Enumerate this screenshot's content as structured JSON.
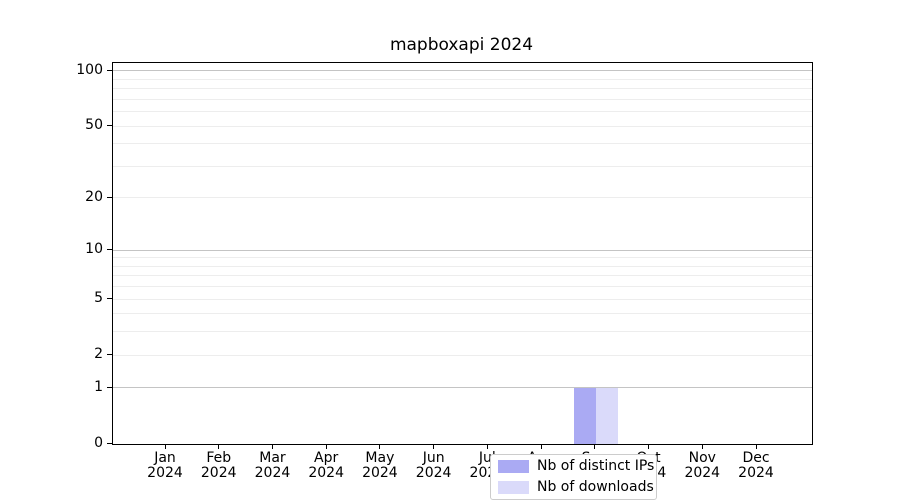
{
  "chart_data": {
    "type": "bar",
    "title": "mapboxapi 2024",
    "categories": [
      "Jan",
      "Feb",
      "Mar",
      "Apr",
      "May",
      "Jun",
      "Jul",
      "Aug",
      "Sep",
      "Oct",
      "Nov",
      "Dec"
    ],
    "category_year": "2024",
    "series": [
      {
        "name": "Nb of distinct IPs",
        "color": "#aaaaf3",
        "values": [
          0,
          0,
          0,
          0,
          0,
          0,
          0,
          0,
          1,
          0,
          0,
          0
        ]
      },
      {
        "name": "Nb of downloads",
        "color": "#dadafa",
        "values": [
          0,
          0,
          0,
          0,
          0,
          0,
          0,
          0,
          1,
          0,
          0,
          0
        ]
      }
    ],
    "yscale": "log1p",
    "ylim": [
      0,
      110.4
    ],
    "xlabel": "",
    "ylabel": "",
    "y_major_ticks": [
      0,
      1,
      2,
      5,
      10,
      20,
      50,
      100
    ],
    "y_decade_gridlines": [
      1,
      10,
      100
    ],
    "y_minor_gridlines": [
      3,
      4,
      6,
      7,
      8,
      9,
      30,
      40,
      60,
      70,
      80,
      90
    ],
    "grid": "horizontal",
    "legend_position": "lower-center-inside"
  },
  "colors": {
    "background": "#ffffff",
    "axis": "#000000",
    "decade_gridline": "#c4c4c4",
    "minor_gridline": "#ededed",
    "legend_border": "#cccccc",
    "text": "#000000"
  }
}
